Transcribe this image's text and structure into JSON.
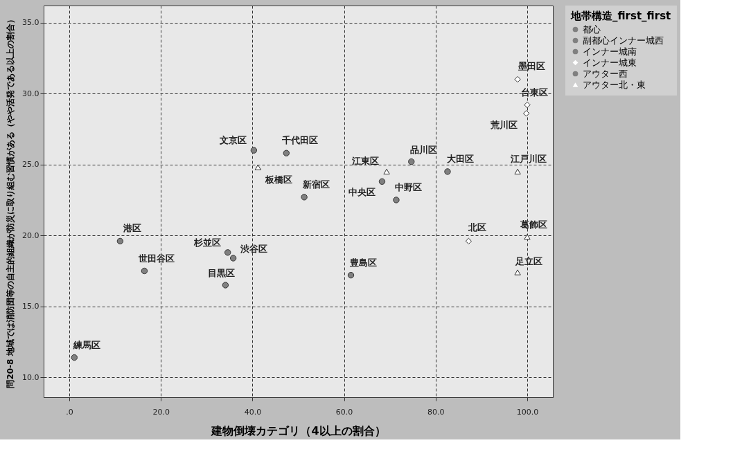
{
  "chart_data": {
    "type": "scatter",
    "xlabel": "建物倒壊カテゴリ（4以上の割合）",
    "ylabel": "問20-8 地域では消防団等の自主的組織が防災に取り組む習慣がある（やや活発である以上の割合）",
    "legend_title": "地帯構造_first_first",
    "legend": "right",
    "grid": true,
    "xlim": [
      -5.6,
      105.6
    ],
    "ylim": [
      8.6,
      36.2
    ],
    "xticks": [
      {
        "value": 0,
        "label": ".0"
      },
      {
        "value": 20,
        "label": "20.0"
      },
      {
        "value": 40,
        "label": "40.0"
      },
      {
        "value": 60,
        "label": "60.0"
      },
      {
        "value": 80,
        "label": "80.0"
      },
      {
        "value": 100,
        "label": "100.0"
      }
    ],
    "yticks": [
      {
        "value": 10,
        "label": "10.0"
      },
      {
        "value": 15,
        "label": "15.0"
      },
      {
        "value": 20,
        "label": "20.0"
      },
      {
        "value": 25,
        "label": "25.0"
      },
      {
        "value": 30,
        "label": "30.0"
      },
      {
        "value": 35,
        "label": "35.0"
      }
    ],
    "series": [
      {
        "name": "都心",
        "color": "#808080",
        "marker": "circle",
        "x": [
          47.4,
          68.3,
          11.1
        ],
        "values": [
          25.8,
          23.8,
          19.6
        ]
      },
      {
        "name": "副都心インナー城西",
        "color": "#808080",
        "marker": "circle",
        "x": [
          51.3,
          40.3,
          35.8,
          61.5
        ],
        "values": [
          22.7,
          26.0,
          18.4,
          17.2
        ]
      },
      {
        "name": "インナー城南",
        "color": "#808080",
        "marker": "circle",
        "x": [
          74.7,
          34.1,
          82.6
        ],
        "values": [
          25.2,
          16.5,
          24.5
        ]
      },
      {
        "name": "インナー城東",
        "color": "#ffffff",
        "marker": "diamond",
        "x": [
          100.0,
          97.9,
          99.8,
          87.2
        ],
        "values": [
          29.2,
          31.0,
          28.6,
          19.6
        ]
      },
      {
        "name": "アウター西",
        "color": "#808080",
        "marker": "circle",
        "x": [
          16.4,
          71.4,
          34.6,
          1.1
        ],
        "values": [
          17.5,
          22.5,
          18.8,
          11.4
        ]
      },
      {
        "name": "アウター北・東",
        "color": "#ffffff",
        "marker": "triangle",
        "x": [
          41.2,
          69.3,
          97.9,
          100.0,
          97.9
        ],
        "values": [
          24.8,
          24.5,
          24.5,
          19.9,
          17.4
        ]
      }
    ],
    "annotations": [
      {
        "text": "文京区",
        "x": 40.3,
        "y": 26.0
      },
      {
        "text": "千代田区",
        "x": 47.4,
        "y": 25.8
      },
      {
        "text": "板橋区",
        "x": 41.2,
        "y": 24.8
      },
      {
        "text": "新宿区",
        "x": 51.3,
        "y": 22.7
      },
      {
        "text": "港区",
        "x": 11.1,
        "y": 19.6
      },
      {
        "text": "杉並区",
        "x": 34.6,
        "y": 18.8
      },
      {
        "text": "渋谷区",
        "x": 35.8,
        "y": 18.4
      },
      {
        "text": "世田谷区",
        "x": 16.4,
        "y": 17.5
      },
      {
        "text": "目黒区",
        "x": 34.1,
        "y": 16.5
      },
      {
        "text": "練馬区",
        "x": 1.1,
        "y": 11.4
      },
      {
        "text": "豊島区",
        "x": 61.5,
        "y": 17.2
      },
      {
        "text": "墨田区",
        "x": 97.9,
        "y": 31.0
      },
      {
        "text": "台東区",
        "x": 100.0,
        "y": 29.2
      },
      {
        "text": "荒川区",
        "x": 99.8,
        "y": 28.6
      },
      {
        "text": "品川区",
        "x": 74.7,
        "y": 25.2
      },
      {
        "text": "江東区",
        "x": 69.3,
        "y": 24.5
      },
      {
        "text": "中央区",
        "x": 68.3,
        "y": 23.8
      },
      {
        "text": "中野区",
        "x": 71.4,
        "y": 22.5
      },
      {
        "text": "大田区",
        "x": 82.6,
        "y": 24.5
      },
      {
        "text": "江戸川区",
        "x": 97.9,
        "y": 24.5
      },
      {
        "text": "北区",
        "x": 87.2,
        "y": 19.6
      },
      {
        "text": "葛飾区",
        "x": 100.0,
        "y": 19.9
      },
      {
        "text": "足立区",
        "x": 97.9,
        "y": 17.4
      }
    ]
  }
}
